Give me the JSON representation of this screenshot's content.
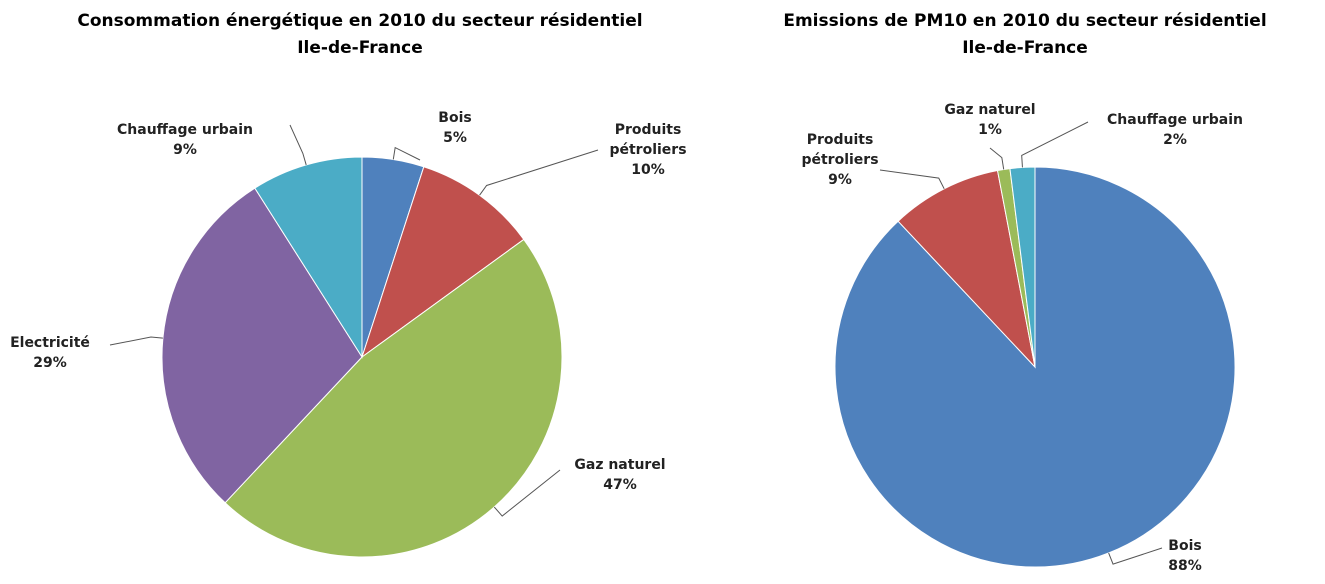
{
  "chart_data": [
    {
      "type": "pie",
      "title": "Consommation énergétique en 2010 du secteur résidentiel\nIle-de-France",
      "categories": [
        "Bois",
        "Produits pétroliers",
        "Gaz naturel",
        "Electricité",
        "Chauffage urbain"
      ],
      "values": [
        5,
        10,
        47,
        29,
        9
      ],
      "value_labels": [
        "5%",
        "10%",
        "47%",
        "29%",
        "9%"
      ],
      "colors": [
        "#4f81bd",
        "#c0504d",
        "#9bbb59",
        "#8064a2",
        "#4bacc6"
      ]
    },
    {
      "type": "pie",
      "title": "Emissions de PM10 en 2010 du secteur résidentiel\nIle-de-France",
      "categories": [
        "Bois",
        "Produits pétroliers",
        "Gaz naturel",
        "Chauffage urbain"
      ],
      "values": [
        88,
        9,
        1,
        2
      ],
      "value_labels": [
        "88%",
        "9%",
        "1%",
        "2%"
      ],
      "colors": [
        "#4f81bd",
        "#c0504d",
        "#9bbb59",
        "#4bacc6"
      ]
    }
  ]
}
